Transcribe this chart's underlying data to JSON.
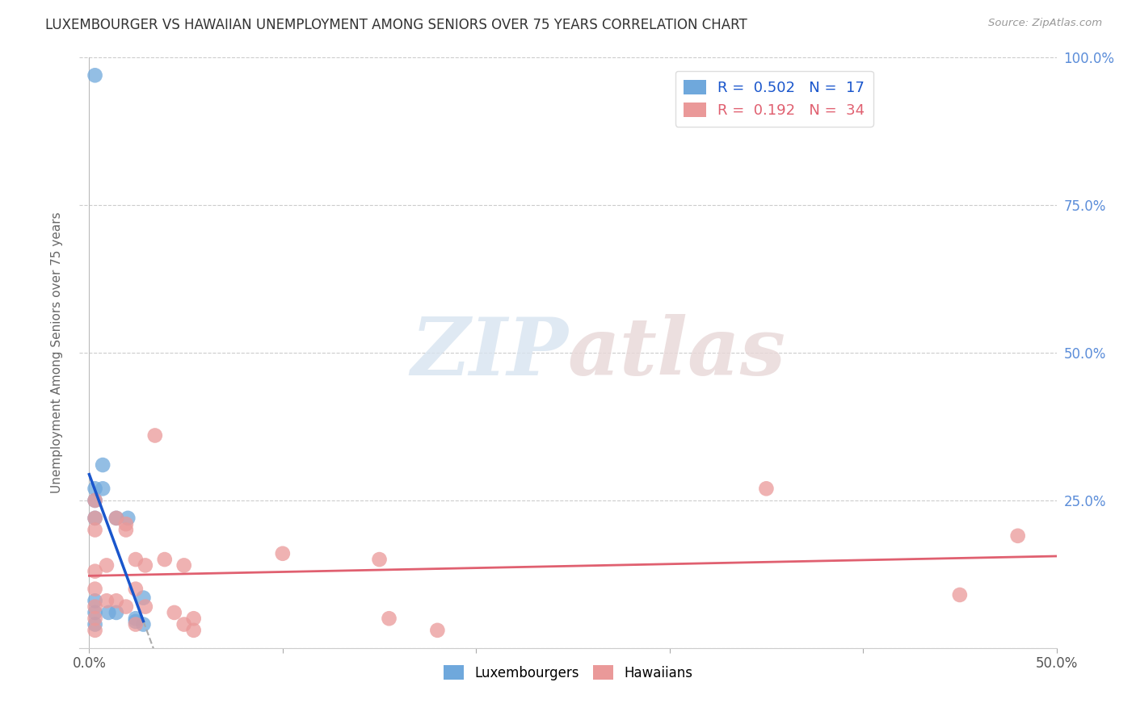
{
  "title": "LUXEMBOURGER VS HAWAIIAN UNEMPLOYMENT AMONG SENIORS OVER 75 YEARS CORRELATION CHART",
  "source": "Source: ZipAtlas.com",
  "ylabel": "Unemployment Among Seniors over 75 years",
  "xlim": [
    -0.005,
    0.5
  ],
  "ylim": [
    0,
    1.0
  ],
  "xtick_vals": [
    0.0,
    0.1,
    0.2,
    0.3,
    0.4,
    0.5
  ],
  "xtick_labels_show": {
    "0.0": "0.0%",
    "0.5": "50.0%"
  },
  "ytick_vals": [
    0.0,
    0.25,
    0.5,
    0.75,
    1.0
  ],
  "ytick_labels_right": [
    "",
    "25.0%",
    "50.0%",
    "75.0%",
    "100.0%"
  ],
  "lux_R": 0.502,
  "lux_N": 17,
  "haw_R": 0.192,
  "haw_N": 34,
  "lux_color": "#6fa8dc",
  "haw_color": "#ea9999",
  "lux_line_color": "#1a56cc",
  "haw_line_color": "#e06070",
  "watermark_zip": "ZIP",
  "watermark_atlas": "atlas",
  "background_color": "#ffffff",
  "lux_x": [
    0.003,
    0.003,
    0.003,
    0.003,
    0.003,
    0.003,
    0.003,
    0.007,
    0.007,
    0.01,
    0.014,
    0.014,
    0.02,
    0.024,
    0.024,
    0.028,
    0.028
  ],
  "lux_y": [
    0.97,
    0.27,
    0.25,
    0.22,
    0.08,
    0.06,
    0.04,
    0.31,
    0.27,
    0.06,
    0.22,
    0.06,
    0.22,
    0.05,
    0.045,
    0.085,
    0.04
  ],
  "haw_x": [
    0.003,
    0.003,
    0.003,
    0.003,
    0.003,
    0.003,
    0.003,
    0.003,
    0.009,
    0.009,
    0.014,
    0.014,
    0.019,
    0.019,
    0.019,
    0.024,
    0.024,
    0.024,
    0.029,
    0.029,
    0.034,
    0.039,
    0.044,
    0.049,
    0.049,
    0.054,
    0.054,
    0.1,
    0.15,
    0.155,
    0.18,
    0.35,
    0.45,
    0.48
  ],
  "haw_y": [
    0.25,
    0.22,
    0.2,
    0.13,
    0.1,
    0.07,
    0.05,
    0.03,
    0.14,
    0.08,
    0.22,
    0.08,
    0.21,
    0.2,
    0.07,
    0.15,
    0.1,
    0.04,
    0.14,
    0.07,
    0.36,
    0.15,
    0.06,
    0.14,
    0.04,
    0.05,
    0.03,
    0.16,
    0.15,
    0.05,
    0.03,
    0.27,
    0.09,
    0.19
  ]
}
